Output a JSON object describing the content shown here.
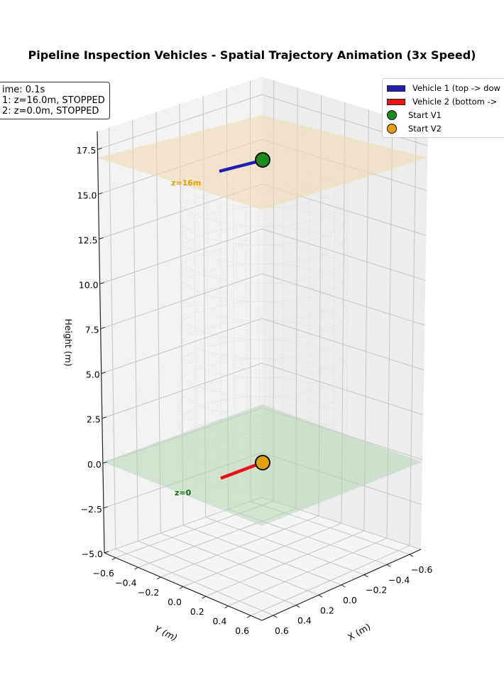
{
  "chart_data": {
    "type": "line3d",
    "title": "Pipeline Inspection Vehicles - Spatial Trajectory Animation (3x Speed)",
    "xlabel": "X (m)",
    "ylabel": "Y (m)",
    "zlabel": "Height (m)",
    "xlim": [
      -0.7,
      0.7
    ],
    "ylim": [
      -0.7,
      0.7
    ],
    "zlim": [
      -5.0,
      18.5
    ],
    "x_ticks": [
      "−0.6",
      "−0.4",
      "−0.2",
      "0.0",
      "0.2",
      "0.4",
      "0.6"
    ],
    "y_ticks": [
      "−0.6",
      "−0.4",
      "−0.2",
      "0.0",
      "0.2",
      "0.4",
      "0.6"
    ],
    "z_ticks": [
      "−5.0",
      "−2.5",
      "0.0",
      "2.5",
      "5.0",
      "7.5",
      "10.0",
      "12.5",
      "15.0",
      "17.5"
    ],
    "grid": true,
    "legend_position": "upper right",
    "series": [
      {
        "name": "Vehicle 1 (top -> down)",
        "color": "#1f1fb4",
        "type": "line",
        "z": 16.0,
        "status": "STOPPED"
      },
      {
        "name": "Vehicle 2 (bottom -> up)",
        "color": "#ee1111",
        "type": "line",
        "z": 0.0,
        "status": "STOPPED"
      },
      {
        "name": "Start V1",
        "color": "#1f8a1f",
        "type": "marker",
        "x": 0.0,
        "y": 0.0,
        "z": 16.0
      },
      {
        "name": "Start V2",
        "color": "#e0a010",
        "type": "marker",
        "x": 0.0,
        "y": 0.0,
        "z": 0.0
      }
    ],
    "planes": [
      {
        "label": "z=16m",
        "z": 16.0,
        "color": "#f2d9b0",
        "label_color": "#e0a010"
      },
      {
        "label": "z=0",
        "z": 0.0,
        "color": "#b5d6b5",
        "label_color": "#1a6b1a"
      }
    ],
    "annotations": [
      "z=16m",
      "z=0"
    ]
  },
  "title": "Pipeline Inspection Vehicles - Spatial Trajectory Animation (3x Speed)",
  "info_box": {
    "line1": "ime: 0.1s",
    "line2": "1: z=16.0m, STOPPED",
    "line3": "2: z=0.0m, STOPPED"
  },
  "legend": {
    "items": [
      {
        "label": "Vehicle 1 (top -> dow",
        "color": "#1f1fb4",
        "kind": "patch"
      },
      {
        "label": "Vehicle 2 (bottom ->",
        "color": "#ee1111",
        "kind": "patch"
      },
      {
        "label": "Start V1",
        "color": "#1f8a1f",
        "kind": "dot"
      },
      {
        "label": "Start V2",
        "color": "#e0a010",
        "kind": "dot"
      }
    ]
  },
  "axes": {
    "zlabel": "Height (m)",
    "xlabel": "X (m)",
    "ylabel": "Y (m)",
    "z_ticks": [
      "17.5",
      "15.0",
      "12.5",
      "10.0",
      "7.5",
      "5.0",
      "2.5",
      "0.0",
      "−2.5",
      "−5.0"
    ],
    "y_ticks": [
      "−0.6",
      "−0.4",
      "−0.2",
      "0.0",
      "0.2",
      "0.4",
      "0.6"
    ],
    "x_ticks": [
      "−0.6",
      "−0.4",
      "−0.2",
      "0.0",
      "0.2",
      "0.4",
      "0.6"
    ]
  },
  "plane_labels": {
    "top": "z=16m",
    "bottom": "z=0"
  }
}
